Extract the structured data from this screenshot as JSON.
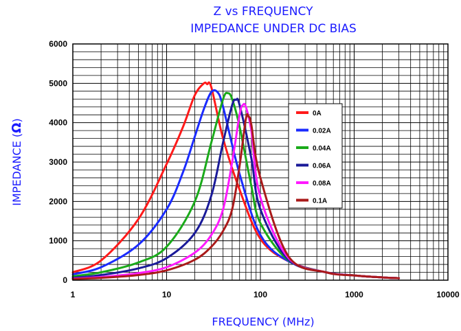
{
  "chart_data": {
    "type": "line",
    "title": "Z vs FREQUENCY",
    "subtitle": "IMPEDANCE UNDER DC BIAS",
    "xlabel": "FREQUENCY (MHz)",
    "ylabel": "IMPEDANCE (",
    "ylabel_unit": "Ω",
    "ylabel_close": ")",
    "x_scale": "log",
    "xlim": [
      1,
      10000
    ],
    "ylim": [
      0,
      6000
    ],
    "grid": true,
    "legend_position": "right",
    "x_ticks": [
      "1",
      "10",
      "100",
      "1000",
      "10000"
    ],
    "y_ticks": [
      "0",
      "1000",
      "2000",
      "3000",
      "4000",
      "5000",
      "6000"
    ],
    "series": [
      {
        "name": "0A",
        "color": "#ff1a1a",
        "x": [
          1,
          2,
          5,
          10,
          15,
          20,
          25,
          27,
          30,
          40,
          60,
          100,
          200,
          500,
          1000,
          2000,
          3000
        ],
        "y": [
          200,
          500,
          1550,
          2950,
          3900,
          4700,
          5000,
          4980,
          4900,
          3600,
          2300,
          1050,
          480,
          200,
          120,
          70,
          50
        ]
      },
      {
        "name": "0.02A",
        "color": "#1a2bff",
        "x": [
          1,
          2,
          5,
          10,
          15,
          20,
          25,
          30,
          35,
          40,
          60,
          100,
          200,
          500,
          1000,
          2000,
          3000
        ],
        "y": [
          150,
          330,
          900,
          1800,
          2750,
          3650,
          4350,
          4780,
          4770,
          4400,
          2700,
          1150,
          480,
          200,
          120,
          70,
          50
        ]
      },
      {
        "name": "0.04A",
        "color": "#1aaa1a",
        "x": [
          1,
          2,
          5,
          10,
          20,
          30,
          40,
          45,
          50,
          60,
          80,
          100,
          200,
          500,
          1000,
          2000,
          3000
        ],
        "y": [
          100,
          200,
          450,
          850,
          2000,
          3500,
          4600,
          4750,
          4600,
          3900,
          2400,
          1450,
          500,
          200,
          120,
          70,
          50
        ]
      },
      {
        "name": "0.06A",
        "color": "#1a1a99",
        "x": [
          1,
          2,
          5,
          10,
          20,
          30,
          40,
          50,
          55,
          60,
          80,
          100,
          200,
          500,
          1000,
          2000,
          3000
        ],
        "y": [
          60,
          130,
          300,
          560,
          1200,
          2150,
          3500,
          4450,
          4580,
          4450,
          3100,
          1800,
          520,
          200,
          120,
          70,
          50
        ]
      },
      {
        "name": "0.08A",
        "color": "#ff1aff",
        "x": [
          1,
          2,
          5,
          10,
          20,
          30,
          40,
          50,
          60,
          65,
          70,
          80,
          100,
          200,
          500,
          1000,
          2000,
          3000
        ],
        "y": [
          40,
          80,
          180,
          330,
          700,
          1150,
          1800,
          3000,
          4200,
          4450,
          4400,
          3800,
          2100,
          560,
          200,
          120,
          70,
          50
        ]
      },
      {
        "name": "0.1A",
        "color": "#aa1a1a",
        "x": [
          1,
          2,
          5,
          10,
          20,
          30,
          40,
          50,
          60,
          70,
          75,
          80,
          100,
          200,
          500,
          1000,
          2000,
          3000
        ],
        "y": [
          30,
          60,
          130,
          250,
          520,
          850,
          1250,
          1800,
          2900,
          4100,
          4150,
          3950,
          2600,
          600,
          200,
          120,
          70,
          50
        ]
      }
    ]
  }
}
